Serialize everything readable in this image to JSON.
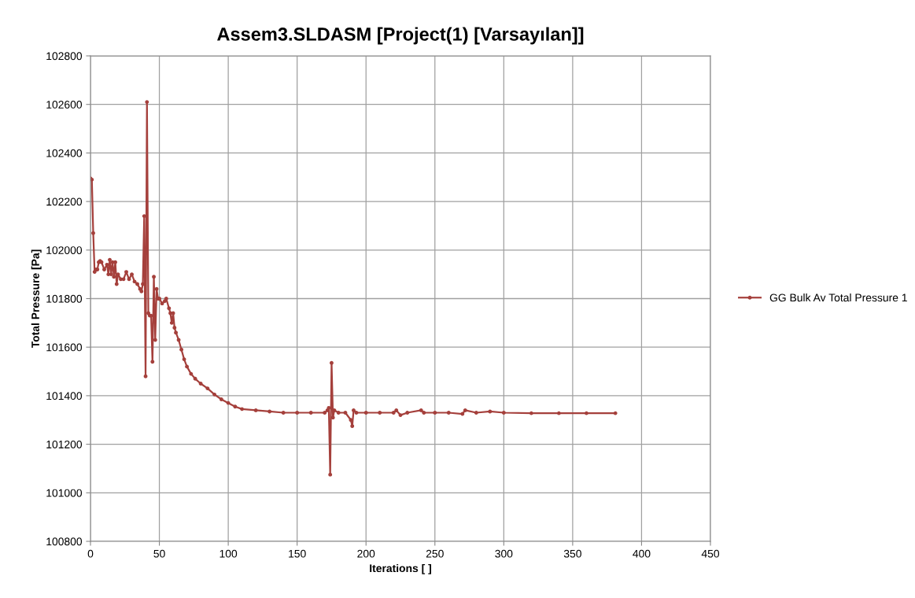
{
  "chart_data": {
    "type": "line",
    "title": "Assem3.SLDASM [Project(1) [Varsayılan]]",
    "xlabel": "Iterations [ ]",
    "ylabel": "Total Pressure [Pa]",
    "xlim": [
      0,
      450
    ],
    "xticks": [
      0,
      50,
      100,
      150,
      200,
      250,
      300,
      350,
      400,
      450
    ],
    "ylim": [
      100800,
      102800
    ],
    "yticks": [
      100800,
      101000,
      101200,
      101400,
      101600,
      101800,
      102000,
      102200,
      102400,
      102600,
      102800
    ],
    "grid": true,
    "legend": "right",
    "marker": "circle",
    "line_style": "solid",
    "series": [
      {
        "name": "GG Bulk Av Total Pressure 1",
        "color": "#a5403c",
        "x": [
          0,
          1,
          2,
          3,
          4,
          5,
          6,
          7,
          8,
          10,
          12,
          13,
          14,
          15,
          16,
          17,
          18,
          19,
          20,
          22,
          24,
          26,
          28,
          30,
          32,
          34,
          36,
          37,
          38,
          39,
          40,
          41,
          42,
          43,
          44,
          45,
          46,
          47,
          48,
          49,
          50,
          52,
          54,
          55,
          57,
          58,
          59,
          60,
          61,
          62,
          64,
          66,
          68,
          70,
          73,
          76,
          80,
          85,
          90,
          95,
          100,
          105,
          110,
          120,
          130,
          140,
          150,
          160,
          170,
          172,
          173,
          174,
          175,
          176,
          177,
          180,
          185,
          189,
          190,
          191,
          193,
          200,
          210,
          220,
          222,
          225,
          230,
          240,
          242,
          250,
          260,
          270,
          272,
          280,
          290,
          300,
          320,
          340,
          360,
          381
        ],
        "values": [
          102295,
          102290,
          102070,
          101910,
          101920,
          101920,
          101950,
          101955,
          101950,
          101920,
          101940,
          101900,
          101960,
          101900,
          101950,
          101890,
          101950,
          101860,
          101900,
          101880,
          101880,
          101910,
          101880,
          101900,
          101870,
          101860,
          101840,
          101830,
          101860,
          102140,
          101480,
          102610,
          101740,
          101730,
          101730,
          101540,
          101890,
          101630,
          101840,
          101800,
          101800,
          101780,
          101790,
          101800,
          101760,
          101740,
          101700,
          101740,
          101680,
          101660,
          101630,
          101590,
          101550,
          101520,
          101490,
          101470,
          101450,
          101430,
          101405,
          101385,
          101370,
          101355,
          101345,
          101340,
          101335,
          101330,
          101330,
          101330,
          101330,
          101340,
          101350,
          101075,
          101535,
          101310,
          101340,
          101330,
          101330,
          101300,
          101275,
          101340,
          101330,
          101330,
          101330,
          101330,
          101340,
          101320,
          101330,
          101340,
          101330,
          101330,
          101330,
          101325,
          101340,
          101330,
          101335,
          101330,
          101328,
          101328,
          101328,
          101328
        ]
      }
    ]
  }
}
